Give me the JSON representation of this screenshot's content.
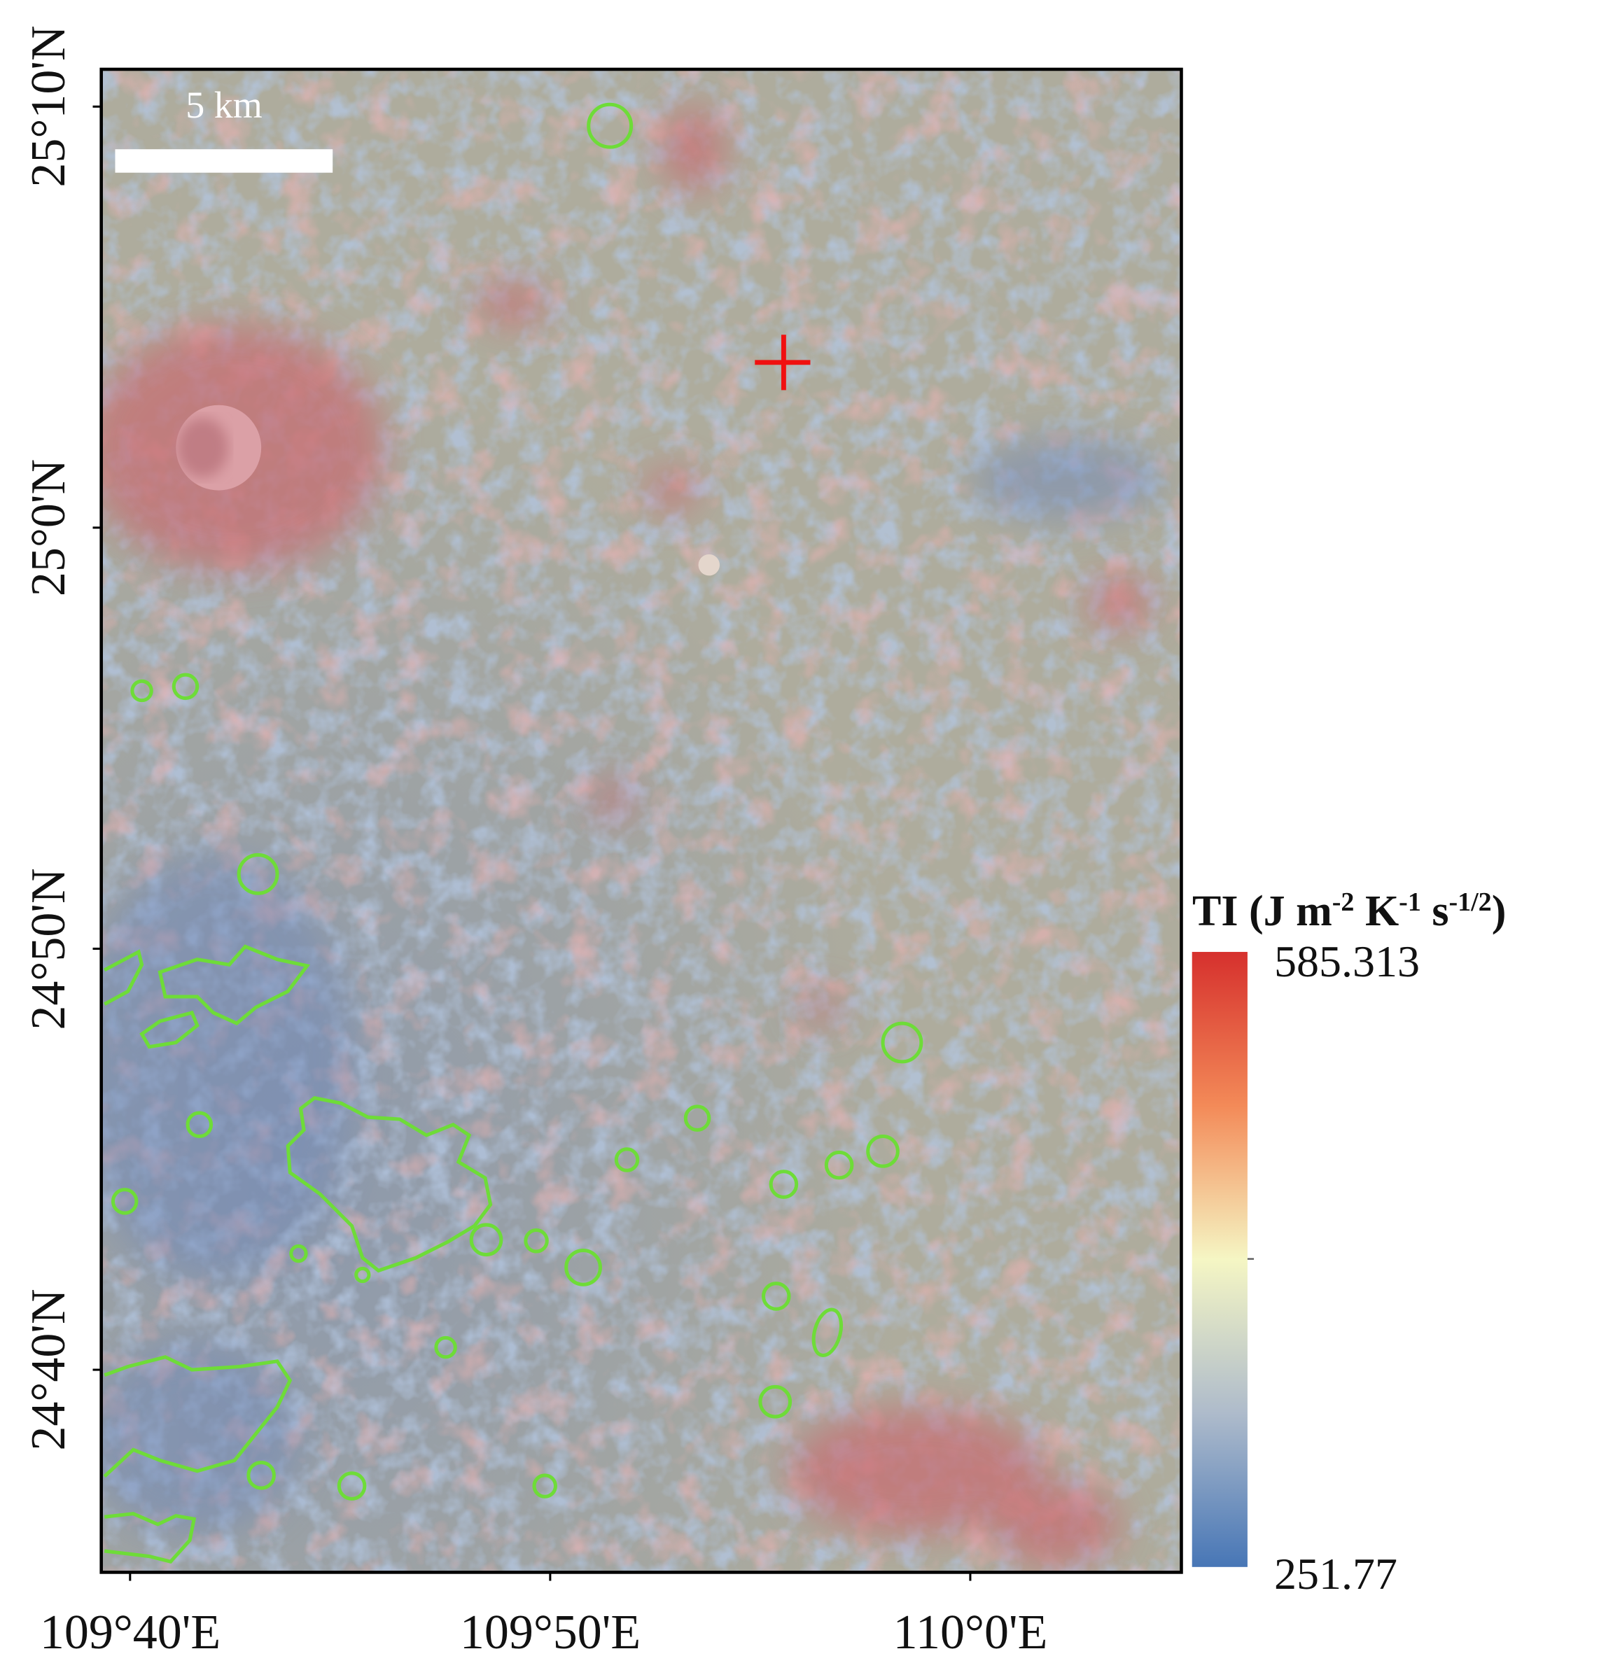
{
  "map": {
    "scale_bar": "5 km",
    "lon_labels": [
      "109°40'E",
      "109°50'E",
      "110°0'E"
    ],
    "lat_labels": [
      "25°10'N",
      "25°0'N",
      "24°50'N",
      "24°40'N"
    ],
    "legend": {
      "title_parts": [
        "TI (J m",
        "-2",
        " K",
        "-1",
        " s",
        "-1/2",
        ")"
      ],
      "max": 585.313,
      "min": 251.77
    }
  }
}
